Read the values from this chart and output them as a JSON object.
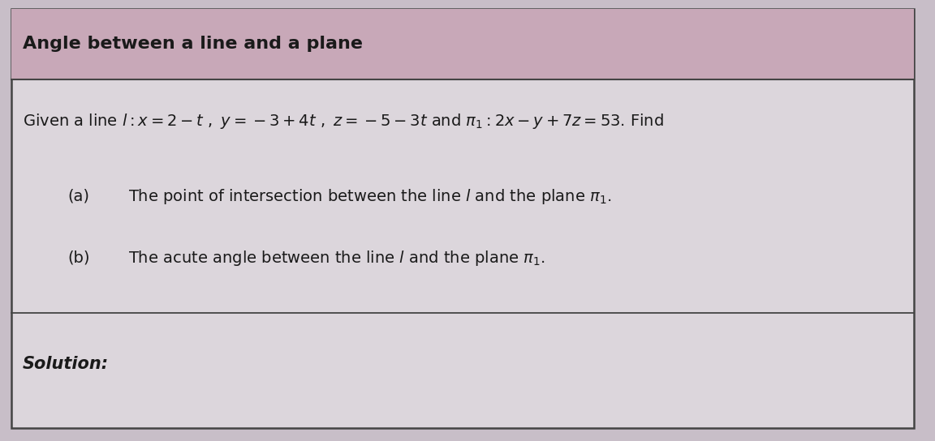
{
  "title": "Angle between a line and a plane",
  "title_color": "#1a1a1a",
  "title_bg_color": "#c8a8b8",
  "box_bg_color": "#dcd6dc",
  "bg_color": "#c8bec8",
  "text_color": "#1a1a1a",
  "border_color": "#444444",
  "solution_label": "Solution:",
  "fig_width": 11.52,
  "fig_height": 5.44
}
